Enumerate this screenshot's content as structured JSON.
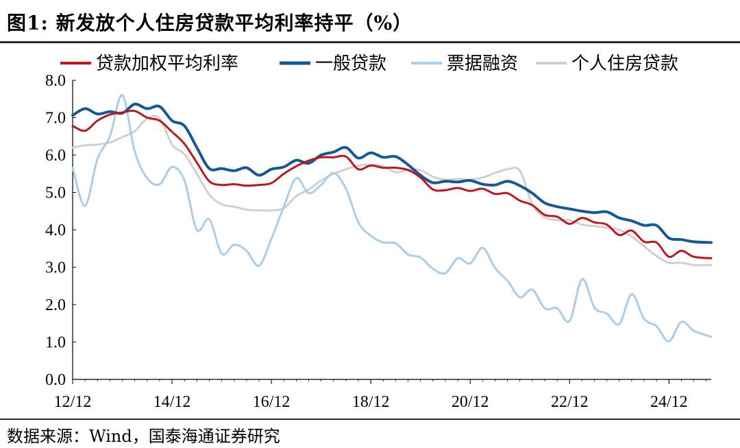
{
  "header": {
    "title": "图1:  新发放个人住房贷款平均利率持平（%）"
  },
  "footer": {
    "source": "数据来源：Wind，国泰海通证券研究"
  },
  "chart_data": {
    "type": "line",
    "title": "新发放个人住房贷款平均利率持平（%）",
    "xlabel": "",
    "ylabel": "",
    "ylim": [
      0,
      8
    ],
    "yticks": [
      "0.0",
      "1.0",
      "2.0",
      "3.0",
      "4.0",
      "5.0",
      "6.0",
      "7.0",
      "8.0"
    ],
    "xlim": [
      2012.75,
      2025.6
    ],
    "xticks": [
      {
        "label": "12/12",
        "t": 2012.75
      },
      {
        "label": "14/12",
        "t": 2014.75
      },
      {
        "label": "16/12",
        "t": 2016.75
      },
      {
        "label": "18/12",
        "t": 2018.75
      },
      {
        "label": "20/12",
        "t": 2020.75
      },
      {
        "label": "22/12",
        "t": 2022.75
      },
      {
        "label": "24/12",
        "t": 2024.75
      }
    ],
    "series": [
      {
        "name": "贷款加权平均利率",
        "color": "#c0161b",
        "width": 3,
        "points": [
          [
            2012.75,
            6.78
          ],
          [
            2013.0,
            6.65
          ],
          [
            2013.25,
            6.92
          ],
          [
            2013.5,
            7.08
          ],
          [
            2013.75,
            7.14
          ],
          [
            2014.0,
            7.18
          ],
          [
            2014.25,
            7.0
          ],
          [
            2014.5,
            6.92
          ],
          [
            2014.75,
            6.62
          ],
          [
            2015.0,
            6.3
          ],
          [
            2015.25,
            5.8
          ],
          [
            2015.5,
            5.3
          ],
          [
            2015.75,
            5.2
          ],
          [
            2016.0,
            5.22
          ],
          [
            2016.25,
            5.18
          ],
          [
            2016.5,
            5.2
          ],
          [
            2016.75,
            5.25
          ],
          [
            2017.0,
            5.5
          ],
          [
            2017.25,
            5.7
          ],
          [
            2017.5,
            5.85
          ],
          [
            2017.75,
            5.94
          ],
          [
            2018.0,
            5.94
          ],
          [
            2018.25,
            5.96
          ],
          [
            2018.5,
            5.62
          ],
          [
            2018.75,
            5.72
          ],
          [
            2019.0,
            5.66
          ],
          [
            2019.25,
            5.66
          ],
          [
            2019.5,
            5.6
          ],
          [
            2019.75,
            5.4
          ],
          [
            2020.0,
            5.08
          ],
          [
            2020.25,
            5.06
          ],
          [
            2020.5,
            5.12
          ],
          [
            2020.75,
            5.04
          ],
          [
            2021.0,
            5.1
          ],
          [
            2021.25,
            4.96
          ],
          [
            2021.5,
            4.98
          ],
          [
            2021.75,
            4.78
          ],
          [
            2022.0,
            4.66
          ],
          [
            2022.25,
            4.4
          ],
          [
            2022.5,
            4.35
          ],
          [
            2022.75,
            4.16
          ],
          [
            2023.0,
            4.32
          ],
          [
            2023.25,
            4.2
          ],
          [
            2023.5,
            4.14
          ],
          [
            2023.75,
            3.86
          ],
          [
            2024.0,
            3.98
          ],
          [
            2024.25,
            3.68
          ],
          [
            2024.5,
            3.66
          ],
          [
            2024.75,
            3.28
          ],
          [
            2025.0,
            3.44
          ],
          [
            2025.25,
            3.28
          ],
          [
            2025.6,
            3.24
          ]
        ]
      },
      {
        "name": "一般贷款",
        "color": "#155799",
        "width": 4,
        "points": [
          [
            2012.75,
            7.06
          ],
          [
            2013.0,
            7.24
          ],
          [
            2013.25,
            7.1
          ],
          [
            2013.5,
            7.16
          ],
          [
            2013.75,
            7.12
          ],
          [
            2014.0,
            7.36
          ],
          [
            2014.25,
            7.24
          ],
          [
            2014.5,
            7.3
          ],
          [
            2014.75,
            6.92
          ],
          [
            2015.0,
            6.78
          ],
          [
            2015.25,
            6.2
          ],
          [
            2015.5,
            5.64
          ],
          [
            2015.75,
            5.64
          ],
          [
            2016.0,
            5.58
          ],
          [
            2016.25,
            5.66
          ],
          [
            2016.5,
            5.46
          ],
          [
            2016.75,
            5.62
          ],
          [
            2017.0,
            5.68
          ],
          [
            2017.25,
            5.86
          ],
          [
            2017.5,
            5.78
          ],
          [
            2017.75,
            6.0
          ],
          [
            2018.0,
            6.08
          ],
          [
            2018.25,
            6.2
          ],
          [
            2018.5,
            5.92
          ],
          [
            2018.75,
            6.06
          ],
          [
            2019.0,
            5.94
          ],
          [
            2019.25,
            5.96
          ],
          [
            2019.5,
            5.74
          ],
          [
            2019.75,
            5.46
          ],
          [
            2020.0,
            5.26
          ],
          [
            2020.25,
            5.3
          ],
          [
            2020.5,
            5.28
          ],
          [
            2020.75,
            5.32
          ],
          [
            2021.0,
            5.22
          ],
          [
            2021.25,
            5.2
          ],
          [
            2021.5,
            5.3
          ],
          [
            2021.75,
            5.18
          ],
          [
            2022.0,
            4.98
          ],
          [
            2022.25,
            4.72
          ],
          [
            2022.5,
            4.62
          ],
          [
            2022.75,
            4.56
          ],
          [
            2023.0,
            4.5
          ],
          [
            2023.25,
            4.46
          ],
          [
            2023.5,
            4.48
          ],
          [
            2023.75,
            4.32
          ],
          [
            2024.0,
            4.24
          ],
          [
            2024.25,
            4.12
          ],
          [
            2024.5,
            4.12
          ],
          [
            2024.75,
            3.78
          ],
          [
            2025.0,
            3.74
          ],
          [
            2025.25,
            3.68
          ],
          [
            2025.6,
            3.66
          ]
        ]
      },
      {
        "name": "票据融资",
        "color": "#a9cdea",
        "width": 3,
        "points": [
          [
            2012.75,
            5.66
          ],
          [
            2013.0,
            4.64
          ],
          [
            2013.25,
            5.9
          ],
          [
            2013.5,
            6.5
          ],
          [
            2013.75,
            7.6
          ],
          [
            2014.0,
            6.1
          ],
          [
            2014.25,
            5.38
          ],
          [
            2014.5,
            5.22
          ],
          [
            2014.75,
            5.68
          ],
          [
            2015.0,
            5.32
          ],
          [
            2015.25,
            4.0
          ],
          [
            2015.5,
            4.28
          ],
          [
            2015.75,
            3.36
          ],
          [
            2016.0,
            3.6
          ],
          [
            2016.25,
            3.44
          ],
          [
            2016.5,
            3.04
          ],
          [
            2016.75,
            3.76
          ],
          [
            2017.0,
            4.62
          ],
          [
            2017.25,
            5.38
          ],
          [
            2017.5,
            4.98
          ],
          [
            2017.75,
            5.2
          ],
          [
            2018.0,
            5.52
          ],
          [
            2018.25,
            5.1
          ],
          [
            2018.5,
            4.2
          ],
          [
            2018.75,
            3.84
          ],
          [
            2019.0,
            3.66
          ],
          [
            2019.25,
            3.64
          ],
          [
            2019.5,
            3.34
          ],
          [
            2019.75,
            3.26
          ],
          [
            2020.0,
            2.96
          ],
          [
            2020.25,
            2.84
          ],
          [
            2020.5,
            3.24
          ],
          [
            2020.75,
            3.1
          ],
          [
            2021.0,
            3.52
          ],
          [
            2021.25,
            2.98
          ],
          [
            2021.5,
            2.64
          ],
          [
            2021.75,
            2.2
          ],
          [
            2022.0,
            2.4
          ],
          [
            2022.25,
            1.9
          ],
          [
            2022.5,
            1.9
          ],
          [
            2022.75,
            1.56
          ],
          [
            2023.0,
            2.68
          ],
          [
            2023.25,
            1.92
          ],
          [
            2023.5,
            1.76
          ],
          [
            2023.75,
            1.48
          ],
          [
            2024.0,
            2.28
          ],
          [
            2024.25,
            1.62
          ],
          [
            2024.5,
            1.42
          ],
          [
            2024.75,
            1.02
          ],
          [
            2025.0,
            1.54
          ],
          [
            2025.25,
            1.3
          ],
          [
            2025.6,
            1.14
          ]
        ]
      },
      {
        "name": "个人住房贷款",
        "color": "#cfcfcf",
        "width": 3,
        "points": [
          [
            2012.75,
            6.2
          ],
          [
            2013.0,
            6.26
          ],
          [
            2013.25,
            6.28
          ],
          [
            2013.5,
            6.34
          ],
          [
            2013.75,
            6.48
          ],
          [
            2014.0,
            6.64
          ],
          [
            2014.25,
            6.98
          ],
          [
            2014.5,
            6.98
          ],
          [
            2014.75,
            6.28
          ],
          [
            2015.0,
            6.02
          ],
          [
            2015.25,
            5.5
          ],
          [
            2015.5,
            4.94
          ],
          [
            2015.75,
            4.68
          ],
          [
            2016.0,
            4.62
          ],
          [
            2016.25,
            4.54
          ],
          [
            2016.5,
            4.52
          ],
          [
            2016.75,
            4.52
          ],
          [
            2017.0,
            4.58
          ],
          [
            2017.25,
            4.9
          ],
          [
            2017.5,
            5.08
          ],
          [
            2017.75,
            5.32
          ],
          [
            2018.0,
            5.5
          ],
          [
            2018.25,
            5.62
          ],
          [
            2018.5,
            5.72
          ],
          [
            2018.75,
            5.74
          ],
          [
            2019.0,
            5.7
          ],
          [
            2019.25,
            5.54
          ],
          [
            2019.5,
            5.6
          ],
          [
            2019.75,
            5.6
          ],
          [
            2020.0,
            5.42
          ],
          [
            2020.25,
            5.34
          ],
          [
            2020.5,
            5.36
          ],
          [
            2020.75,
            5.34
          ],
          [
            2021.0,
            5.4
          ],
          [
            2021.25,
            5.52
          ],
          [
            2021.5,
            5.62
          ],
          [
            2021.75,
            5.58
          ],
          [
            2022.0,
            4.68
          ],
          [
            2022.25,
            4.34
          ],
          [
            2022.5,
            4.26
          ],
          [
            2022.75,
            4.26
          ],
          [
            2023.0,
            4.14
          ],
          [
            2023.25,
            4.1
          ],
          [
            2023.5,
            4.06
          ],
          [
            2023.75,
            4.0
          ],
          [
            2024.0,
            3.82
          ],
          [
            2024.25,
            3.56
          ],
          [
            2024.5,
            3.3
          ],
          [
            2024.75,
            3.12
          ],
          [
            2025.0,
            3.12
          ],
          [
            2025.25,
            3.06
          ],
          [
            2025.6,
            3.06
          ]
        ]
      }
    ],
    "legend_position": "top"
  }
}
